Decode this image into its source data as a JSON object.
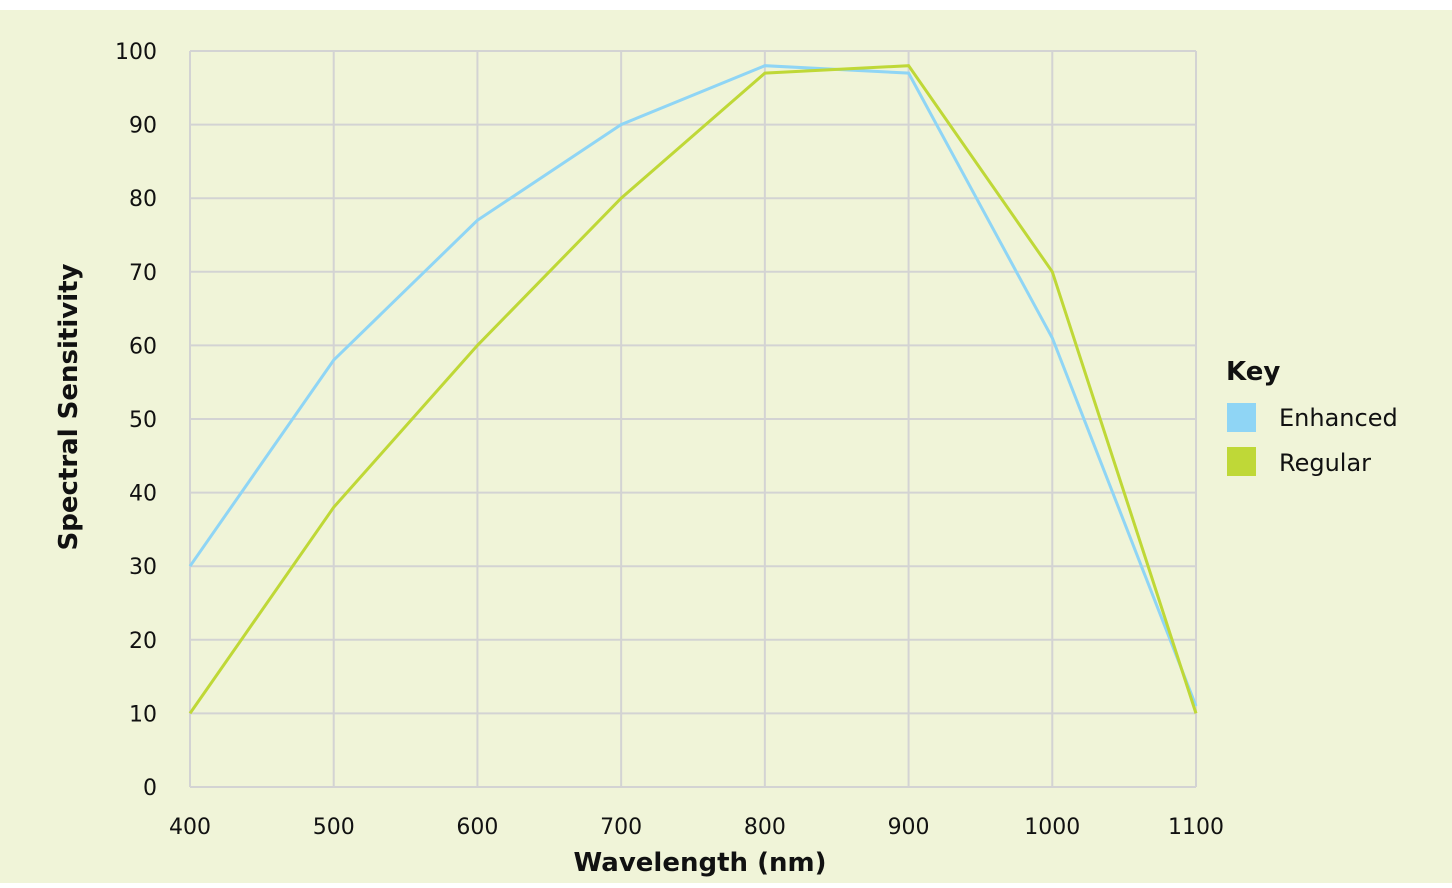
{
  "chart_data": {
    "type": "line",
    "title": "",
    "xlabel": "Wavelength (nm)",
    "ylabel": "Spectral Sensitivity",
    "x": [
      400,
      500,
      600,
      700,
      800,
      900,
      1000,
      1100
    ],
    "xlim": [
      400,
      1100
    ],
    "ylim": [
      0,
      100
    ],
    "x_ticks": [
      "400",
      "500",
      "600",
      "700",
      "800",
      "900",
      "1000",
      "1100"
    ],
    "y_ticks": [
      "0",
      "10",
      "20",
      "30",
      "40",
      "50",
      "60",
      "70",
      "80",
      "90",
      "100"
    ],
    "grid": true,
    "legend_title": "Key",
    "legend_position": "right",
    "series": [
      {
        "name": "Enhanced",
        "color": "#8fd5f5",
        "values": [
          30,
          58,
          77,
          90,
          98,
          97,
          61,
          11
        ]
      },
      {
        "name": "Regular",
        "color": "#bfd837",
        "values": [
          10,
          38,
          60,
          80,
          97,
          98,
          70,
          10
        ]
      }
    ],
    "colors": {
      "background": "#f0f4d8",
      "grid": "#d3d3d3"
    }
  }
}
